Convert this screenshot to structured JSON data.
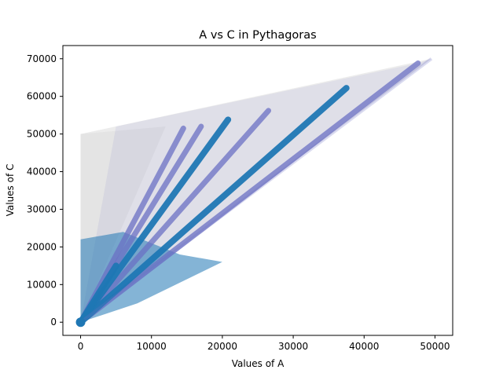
{
  "chart_data": {
    "type": "scatter",
    "title": "A vs C in Pythagoras",
    "xlabel": "Values of A",
    "ylabel": "Values of C",
    "xlim": [
      -2500,
      52500
    ],
    "ylim": [
      -3500,
      73500
    ],
    "x_ticks": [
      0,
      10000,
      20000,
      30000,
      40000,
      50000
    ],
    "y_ticks": [
      0,
      10000,
      20000,
      30000,
      40000,
      50000,
      60000,
      70000
    ],
    "grid": false,
    "legend": "none",
    "colors": {
      "haze": "#a9a9a9",
      "mid": "#6b70c4",
      "main": "#1f77b4"
    },
    "haze_region": {
      "description_points": [
        [
          0,
          0
        ],
        [
          0,
          50000
        ],
        [
          49500,
          70000
        ]
      ],
      "upper_edge": [
        [
          0,
          50000
        ],
        [
          49500,
          70000
        ]
      ]
    },
    "series": [
      {
        "color": "#6b70c4",
        "x": [
          0,
          47600
        ],
        "y": [
          0,
          68800
        ]
      },
      {
        "color": "#6b70c4",
        "x": [
          0,
          14500
        ],
        "y": [
          0,
          51500
        ]
      },
      {
        "color": "#6b70c4",
        "x": [
          0,
          17000
        ],
        "y": [
          0,
          52000
        ]
      },
      {
        "color": "#6b70c4",
        "x": [
          0,
          26500
        ],
        "y": [
          0,
          56200
        ]
      },
      {
        "color": "#1f77b4",
        "x": [
          0,
          20800
        ],
        "y": [
          0,
          53800
        ]
      },
      {
        "color": "#1f77b4",
        "x": [
          0,
          37500
        ],
        "y": [
          0,
          62200
        ]
      },
      {
        "color": "#1f77b4",
        "x": [
          0,
          5000
        ],
        "y": [
          0,
          15000
        ]
      }
    ]
  }
}
